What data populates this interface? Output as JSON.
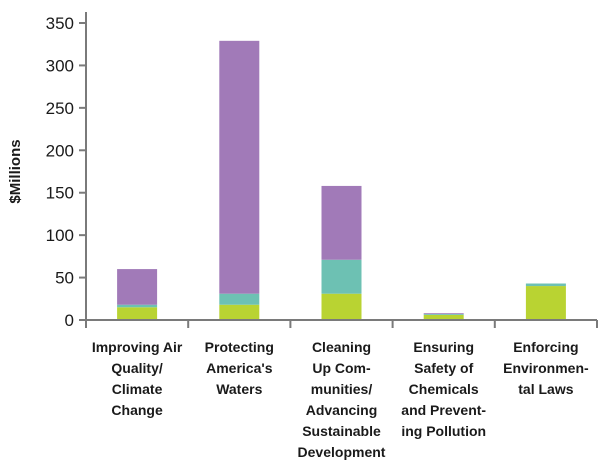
{
  "chart_data": {
    "type": "bar",
    "stacked": true,
    "title": "",
    "xlabel": "",
    "ylabel": "$Millions",
    "ylim": [
      0,
      350
    ],
    "yticks": [
      0,
      50,
      100,
      150,
      200,
      250,
      300,
      350
    ],
    "grid": false,
    "legend": "none",
    "categories": [
      "Improving Air Quality/ Climate Change",
      "Protecting America's Waters",
      "Cleaning Up Communities/ Advancing Sustainable Development",
      "Ensuring Safety of Chemicals and Preventing Pollution",
      "Enforcing Environmental Laws"
    ],
    "category_lines": [
      [
        "Improving Air",
        "Quality/",
        "Climate",
        "Change"
      ],
      [
        "Protecting",
        "America's",
        "Waters"
      ],
      [
        "Cleaning",
        "Up Com-",
        "munities/",
        "Advancing",
        "Sustainable",
        "Development"
      ],
      [
        "Ensuring",
        "Safety of",
        "Chemicals",
        "and Prevent-",
        "ing Pollution"
      ],
      [
        "Enforcing",
        "Environmen-",
        "tal Laws"
      ]
    ],
    "series": [
      {
        "color": "#b9d332",
        "values": [
          15,
          18,
          31,
          6,
          40
        ]
      },
      {
        "color": "#6dc1b3",
        "values": [
          3,
          13,
          40,
          1,
          3
        ]
      },
      {
        "color": "#a17ab8",
        "values": [
          42,
          298,
          87,
          1,
          0
        ]
      }
    ]
  }
}
